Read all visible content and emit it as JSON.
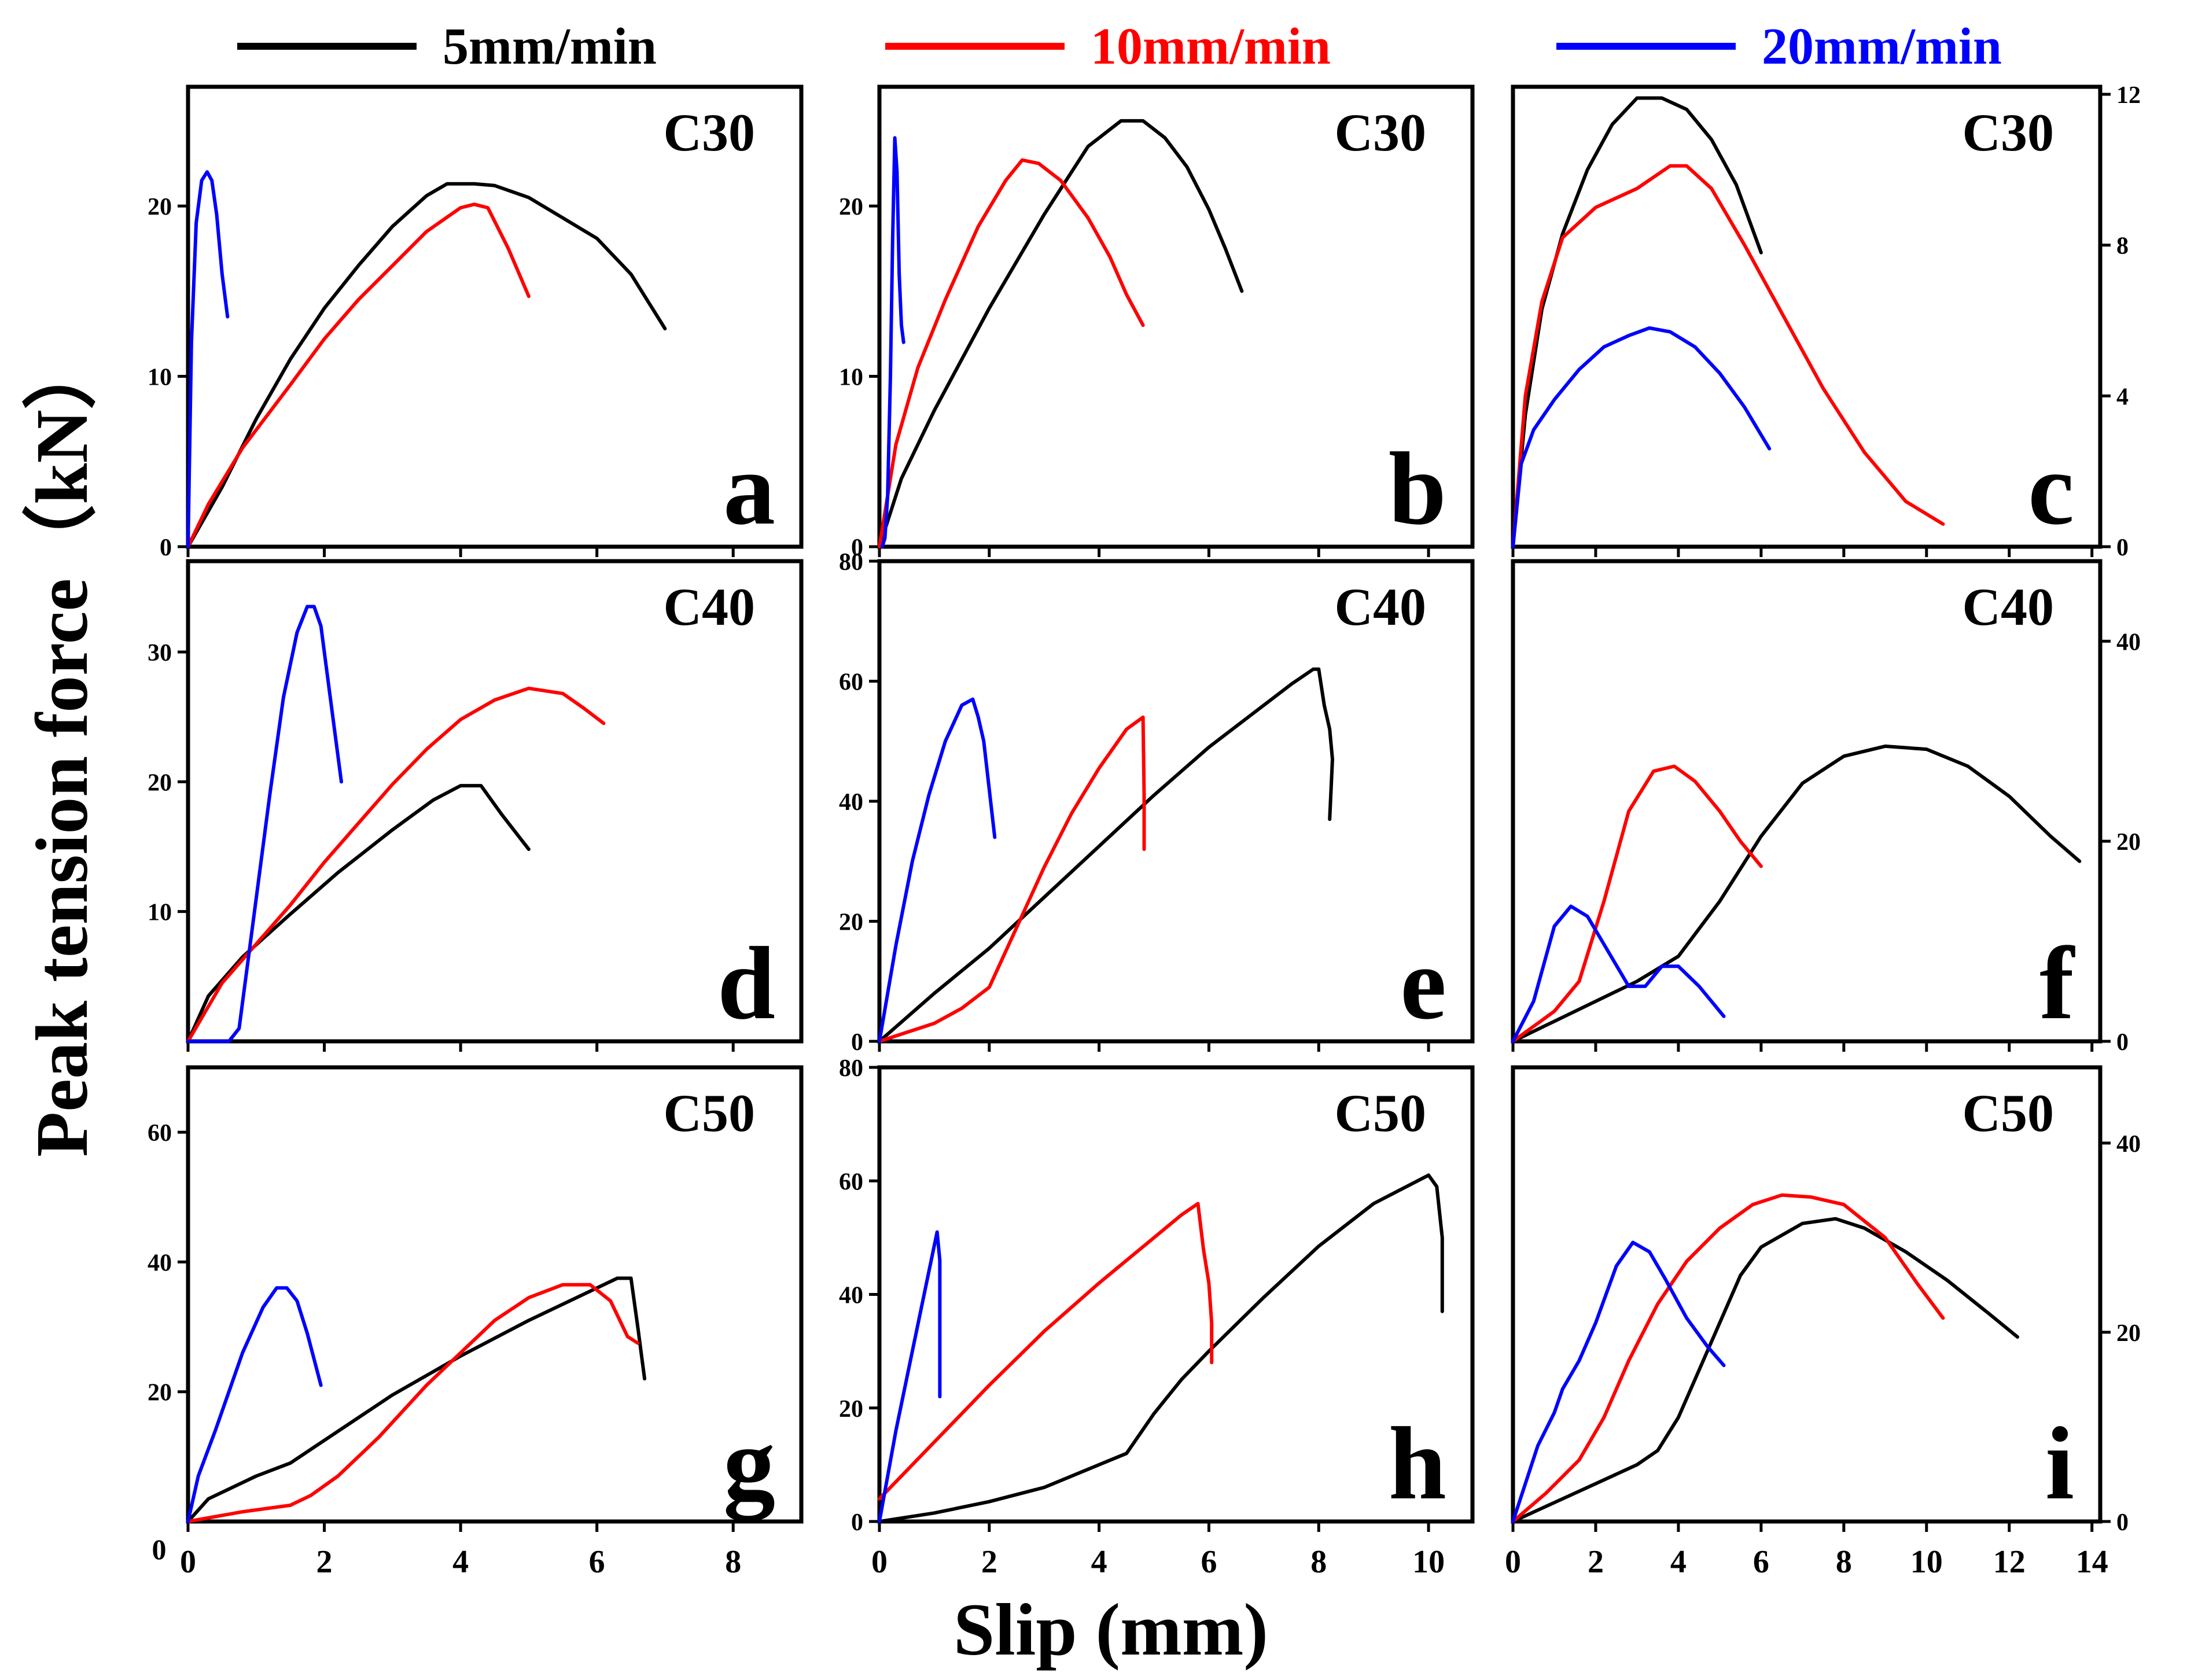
{
  "figure": {
    "ylabel": "Peak  tension  force（kN）",
    "xlabel": "Slip (mm)",
    "legend": [
      {
        "label": "5mm/min",
        "color": "#000000"
      },
      {
        "label": "10mm/min",
        "color": "#ff0000"
      },
      {
        "label": "20mm/min",
        "color": "#0000ff"
      }
    ],
    "columns": [
      {
        "xlim": [
          0,
          9
        ],
        "xticks": [
          0,
          2,
          4,
          6,
          8
        ]
      },
      {
        "xlim": [
          0,
          10.8
        ],
        "xticks": [
          0,
          2,
          4,
          6,
          8,
          10
        ]
      },
      {
        "xlim": [
          0,
          14.2
        ],
        "xticks": [
          0,
          2,
          4,
          6,
          8,
          10,
          12,
          14
        ]
      }
    ],
    "origin_label": "0"
  },
  "chart_data": [
    {
      "type": "line",
      "panel": "a",
      "title": "C30",
      "yaxis_side": "left",
      "xlim": [
        0,
        9
      ],
      "ylim": [
        0,
        27
      ],
      "yticks": [
        0,
        10,
        20
      ],
      "series": [
        {
          "name": "5mm/min",
          "color": "#000000",
          "x": [
            0,
            0.5,
            1,
            1.5,
            2,
            2.5,
            3,
            3.5,
            3.8,
            4.2,
            4.5,
            5,
            5.5,
            6,
            6.5,
            7
          ],
          "y": [
            0,
            3.5,
            7.5,
            11,
            14,
            16.5,
            18.8,
            20.6,
            21.3,
            21.3,
            21.2,
            20.5,
            19.3,
            18.1,
            16,
            12.8
          ]
        },
        {
          "name": "10mm/min",
          "color": "#ff0000",
          "x": [
            0,
            0.3,
            0.8,
            1.5,
            2,
            2.5,
            3,
            3.5,
            4,
            4.2,
            4.4,
            4.7,
            5
          ],
          "y": [
            0,
            2.5,
            5.8,
            9.5,
            12.2,
            14.5,
            16.5,
            18.5,
            19.9,
            20.1,
            19.9,
            17.5,
            14.7
          ]
        },
        {
          "name": "20mm/min",
          "color": "#0000ff",
          "x": [
            0,
            0.05,
            0.12,
            0.2,
            0.28,
            0.35,
            0.42,
            0.5,
            0.58
          ],
          "y": [
            0,
            12,
            19,
            21.5,
            22,
            21.5,
            19.5,
            16,
            13.5
          ]
        }
      ]
    },
    {
      "type": "line",
      "panel": "b",
      "title": "C30",
      "yaxis_side": "left",
      "xlim": [
        0,
        10.8
      ],
      "ylim": [
        0,
        27
      ],
      "yticks": [
        0,
        10,
        20
      ],
      "series": [
        {
          "name": "5mm/min",
          "color": "#000000",
          "x": [
            0,
            0.4,
            1,
            2,
            3,
            3.8,
            4.4,
            4.8,
            5.2,
            5.6,
            6,
            6.3,
            6.6
          ],
          "y": [
            0,
            4,
            8,
            14,
            19.5,
            23.5,
            25,
            25,
            24,
            22.3,
            19.8,
            17.5,
            15
          ]
        },
        {
          "name": "10mm/min",
          "color": "#ff0000",
          "x": [
            0,
            0.3,
            0.7,
            1.2,
            1.8,
            2.3,
            2.6,
            2.9,
            3.3,
            3.8,
            4.2,
            4.5,
            4.8
          ],
          "y": [
            0,
            6,
            10.5,
            14.5,
            18.8,
            21.5,
            22.7,
            22.5,
            21.5,
            19.3,
            17,
            14.8,
            13
          ]
        },
        {
          "name": "20mm/min",
          "color": "#0000ff",
          "x": [
            0.05,
            0.1,
            0.15,
            0.2,
            0.24,
            0.28,
            0.32,
            0.36,
            0.4,
            0.44
          ],
          "y": [
            0,
            0.5,
            3,
            10,
            18,
            24,
            22,
            16,
            13,
            12
          ]
        }
      ]
    },
    {
      "type": "line",
      "panel": "c",
      "title": "C30",
      "yaxis_side": "right",
      "xlim": [
        0,
        14.2
      ],
      "ylim": [
        0,
        12.2
      ],
      "yticks": [
        0,
        4,
        8,
        12
      ],
      "series": [
        {
          "name": "5mm/min",
          "color": "#000000",
          "x": [
            0,
            0.3,
            0.7,
            1.2,
            1.8,
            2.4,
            3,
            3.6,
            4.2,
            4.8,
            5.4,
            6
          ],
          "y": [
            0,
            3.5,
            6.3,
            8.3,
            10,
            11.2,
            11.9,
            11.9,
            11.6,
            10.8,
            9.6,
            7.8
          ]
        },
        {
          "name": "10mm/min",
          "color": "#ff0000",
          "x": [
            0,
            0.3,
            0.7,
            1.2,
            2,
            3,
            3.8,
            4.2,
            4.8,
            5.6,
            6.5,
            7.5,
            8.5,
            9.5,
            10.4
          ],
          "y": [
            0,
            4,
            6.5,
            8.2,
            9,
            9.5,
            10.1,
            10.1,
            9.5,
            8,
            6.2,
            4.2,
            2.5,
            1.2,
            0.6
          ]
        },
        {
          "name": "20mm/min",
          "color": "#0000ff",
          "x": [
            0,
            0.2,
            0.5,
            1,
            1.6,
            2.2,
            2.8,
            3.3,
            3.8,
            4.4,
            5,
            5.6,
            6.2
          ],
          "y": [
            0,
            2.2,
            3.1,
            3.9,
            4.7,
            5.3,
            5.6,
            5.8,
            5.7,
            5.3,
            4.6,
            3.7,
            2.6
          ]
        }
      ]
    },
    {
      "type": "line",
      "panel": "d",
      "title": "C40",
      "yaxis_side": "left",
      "xlim": [
        0,
        9
      ],
      "ylim": [
        0,
        37
      ],
      "yticks": [
        10,
        20,
        30
      ],
      "series": [
        {
          "name": "5mm/min",
          "color": "#000000",
          "x": [
            0,
            0.3,
            0.8,
            1.5,
            2.2,
            3,
            3.6,
            4,
            4.3,
            4.6,
            5
          ],
          "y": [
            0,
            3.5,
            6.5,
            9.8,
            13,
            16.3,
            18.6,
            19.7,
            19.7,
            17.5,
            14.8
          ]
        },
        {
          "name": "10mm/min",
          "color": "#ff0000",
          "x": [
            0,
            0.5,
            1,
            1.5,
            2,
            2.5,
            3,
            3.5,
            4,
            4.5,
            5,
            5.5,
            5.8,
            6.1
          ],
          "y": [
            0,
            4.5,
            7.5,
            10.5,
            13.8,
            16.8,
            19.8,
            22.5,
            24.8,
            26.3,
            27.2,
            26.8,
            25.7,
            24.5
          ]
        },
        {
          "name": "20mm/min",
          "color": "#0000ff",
          "x": [
            0,
            0.6,
            0.75,
            0.85,
            1,
            1.2,
            1.4,
            1.6,
            1.75,
            1.85,
            1.95,
            2.05,
            2.15,
            2.25
          ],
          "y": [
            0,
            0,
            1,
            5,
            11,
            19,
            26.5,
            31.5,
            33.5,
            33.5,
            32,
            28,
            24,
            20
          ]
        }
      ]
    },
    {
      "type": "line",
      "panel": "e",
      "title": "C40",
      "yaxis_side": "left",
      "xlim": [
        0,
        10.8
      ],
      "ylim": [
        0,
        80
      ],
      "yticks": [
        0,
        20,
        40,
        60,
        80
      ],
      "series": [
        {
          "name": "5mm/min",
          "color": "#000000",
          "x": [
            0,
            1,
            2,
            3,
            4,
            5,
            6,
            7,
            7.5,
            7.9,
            8,
            8.1,
            8.2,
            8.25,
            8.2
          ],
          "y": [
            0,
            8,
            15.5,
            24,
            32.5,
            41,
            49,
            56,
            59.5,
            62,
            62,
            56,
            52,
            47,
            37
          ]
        },
        {
          "name": "10mm/min",
          "color": "#ff0000",
          "x": [
            0,
            0.5,
            1,
            1.5,
            2,
            2.5,
            3,
            3.5,
            4,
            4.5,
            4.8,
            4.82,
            4.82
          ],
          "y": [
            0,
            1.5,
            3,
            5.5,
            9,
            19,
            29,
            38,
            45.5,
            52,
            54,
            41,
            32
          ]
        },
        {
          "name": "20mm/min",
          "color": "#0000ff",
          "x": [
            0,
            0.3,
            0.6,
            0.9,
            1.2,
            1.5,
            1.7,
            1.8,
            1.9,
            2,
            2.1
          ],
          "y": [
            0,
            16,
            30,
            41,
            50,
            56,
            57,
            54,
            50,
            42,
            34
          ]
        }
      ]
    },
    {
      "type": "line",
      "panel": "f",
      "title": "C40",
      "yaxis_side": "right",
      "xlim": [
        0,
        14.2
      ],
      "ylim": [
        0,
        48
      ],
      "yticks": [
        0,
        20,
        40
      ],
      "series": [
        {
          "name": "5mm/min",
          "color": "#000000",
          "x": [
            0,
            1,
            2,
            3,
            4,
            5,
            6,
            7,
            8,
            9,
            10,
            11,
            12,
            13,
            13.7
          ],
          "y": [
            0,
            2,
            4,
            6,
            8.5,
            14,
            20.5,
            25.8,
            28.5,
            29.5,
            29.2,
            27.5,
            24.5,
            20.5,
            18
          ]
        },
        {
          "name": "10mm/min",
          "color": "#ff0000",
          "x": [
            0,
            1,
            1.6,
            2.2,
            2.8,
            3.4,
            3.9,
            4.4,
            5,
            5.5,
            6
          ],
          "y": [
            0,
            3,
            6,
            14,
            23,
            27,
            27.5,
            26,
            23,
            20,
            17.5
          ]
        },
        {
          "name": "20mm/min",
          "color": "#0000ff",
          "x": [
            0,
            0.5,
            1,
            1.4,
            1.8,
            2.3,
            2.8,
            3.2,
            3.6,
            4,
            4.5,
            5.1
          ],
          "y": [
            0,
            4,
            11.5,
            13.5,
            12.5,
            9,
            5.5,
            5.5,
            7.5,
            7.5,
            5.5,
            2.5
          ]
        }
      ]
    },
    {
      "type": "line",
      "panel": "g",
      "title": "C50",
      "yaxis_side": "left",
      "xlim": [
        0,
        9
      ],
      "ylim": [
        0,
        70
      ],
      "yticks": [
        20,
        40,
        60
      ],
      "series": [
        {
          "name": "5mm/min",
          "color": "#000000",
          "x": [
            0,
            0.3,
            1,
            1.5,
            2,
            3,
            4,
            5,
            6,
            6.3,
            6.5,
            6.6,
            6.7
          ],
          "y": [
            0,
            3.5,
            7,
            9,
            12.5,
            19.5,
            25.5,
            31,
            36,
            37.5,
            37.5,
            30,
            22
          ]
        },
        {
          "name": "10mm/min",
          "color": "#ff0000",
          "x": [
            0,
            0.8,
            1.5,
            1.8,
            2.2,
            2.8,
            3.5,
            4,
            4.5,
            5,
            5.5,
            5.9,
            6.2,
            6.45,
            6.6
          ],
          "y": [
            0,
            1.5,
            2.5,
            4,
            7,
            13,
            21,
            26,
            31,
            34.5,
            36.5,
            36.5,
            34,
            28.5,
            27.5
          ]
        },
        {
          "name": "20mm/min",
          "color": "#0000ff",
          "x": [
            0,
            0.15,
            0.4,
            0.8,
            1.1,
            1.3,
            1.45,
            1.6,
            1.75,
            1.85,
            1.95
          ],
          "y": [
            0,
            7,
            14,
            26,
            33,
            36,
            36,
            34,
            29,
            25,
            21
          ]
        }
      ]
    },
    {
      "type": "line",
      "panel": "h",
      "title": "C50",
      "yaxis_side": "left",
      "xlim": [
        0,
        10.8
      ],
      "ylim": [
        0,
        80
      ],
      "yticks": [
        0,
        20,
        40,
        60,
        80
      ],
      "series": [
        {
          "name": "5mm/min",
          "color": "#000000",
          "x": [
            0,
            1,
            2,
            3,
            4,
            4.5,
            5,
            5.5,
            6,
            7,
            8,
            9,
            10,
            10.15,
            10.25,
            10.25
          ],
          "y": [
            0,
            1.5,
            3.5,
            6,
            10,
            12,
            19,
            25,
            30,
            39.5,
            48.5,
            56,
            61,
            59,
            50,
            37
          ]
        },
        {
          "name": "10mm/min",
          "color": "#ff0000",
          "x": [
            0,
            1,
            2,
            3,
            4,
            5,
            5.5,
            5.8,
            5.9,
            6,
            6.05,
            6.05
          ],
          "y": [
            4,
            14,
            24,
            33.5,
            42,
            50,
            54,
            56,
            48,
            42,
            35,
            28
          ]
        },
        {
          "name": "20mm/min",
          "color": "#0000ff",
          "x": [
            0,
            0.3,
            0.6,
            0.9,
            1.05,
            1.1,
            1.1
          ],
          "y": [
            0,
            16,
            30,
            44,
            51,
            46,
            22
          ]
        }
      ]
    },
    {
      "type": "line",
      "panel": "i",
      "title": "C50",
      "yaxis_side": "right",
      "xlim": [
        0,
        14.2
      ],
      "ylim": [
        0,
        48
      ],
      "yticks": [
        0,
        20,
        40
      ],
      "series": [
        {
          "name": "5mm/min",
          "color": "#000000",
          "x": [
            0,
            1,
            2,
            3,
            3.5,
            4,
            4.5,
            5,
            5.5,
            6,
            7,
            7.8,
            8.5,
            9.5,
            10.5,
            11.5,
            12.2
          ],
          "y": [
            0,
            2,
            4,
            6,
            7.5,
            11,
            16,
            21,
            26,
            29,
            31.5,
            32,
            31,
            28.5,
            25.5,
            22,
            19.5
          ]
        },
        {
          "name": "10mm/min",
          "color": "#ff0000",
          "x": [
            0,
            0.8,
            1.6,
            2.2,
            2.8,
            3.5,
            4.2,
            5,
            5.8,
            6.5,
            7.2,
            8,
            9,
            9.8,
            10.4
          ],
          "y": [
            0,
            3,
            6.5,
            11,
            17,
            23,
            27.5,
            31,
            33.5,
            34.5,
            34.3,
            33.5,
            30,
            25,
            21.5
          ]
        },
        {
          "name": "20mm/min",
          "color": "#0000ff",
          "x": [
            0,
            0.6,
            1,
            1.2,
            1.6,
            2,
            2.5,
            2.9,
            3.3,
            3.7,
            4.2,
            4.7,
            5.1
          ],
          "y": [
            0,
            8,
            11.5,
            14,
            17,
            21,
            27,
            29.5,
            28.5,
            25.5,
            21.5,
            18.5,
            16.5
          ]
        }
      ]
    }
  ]
}
